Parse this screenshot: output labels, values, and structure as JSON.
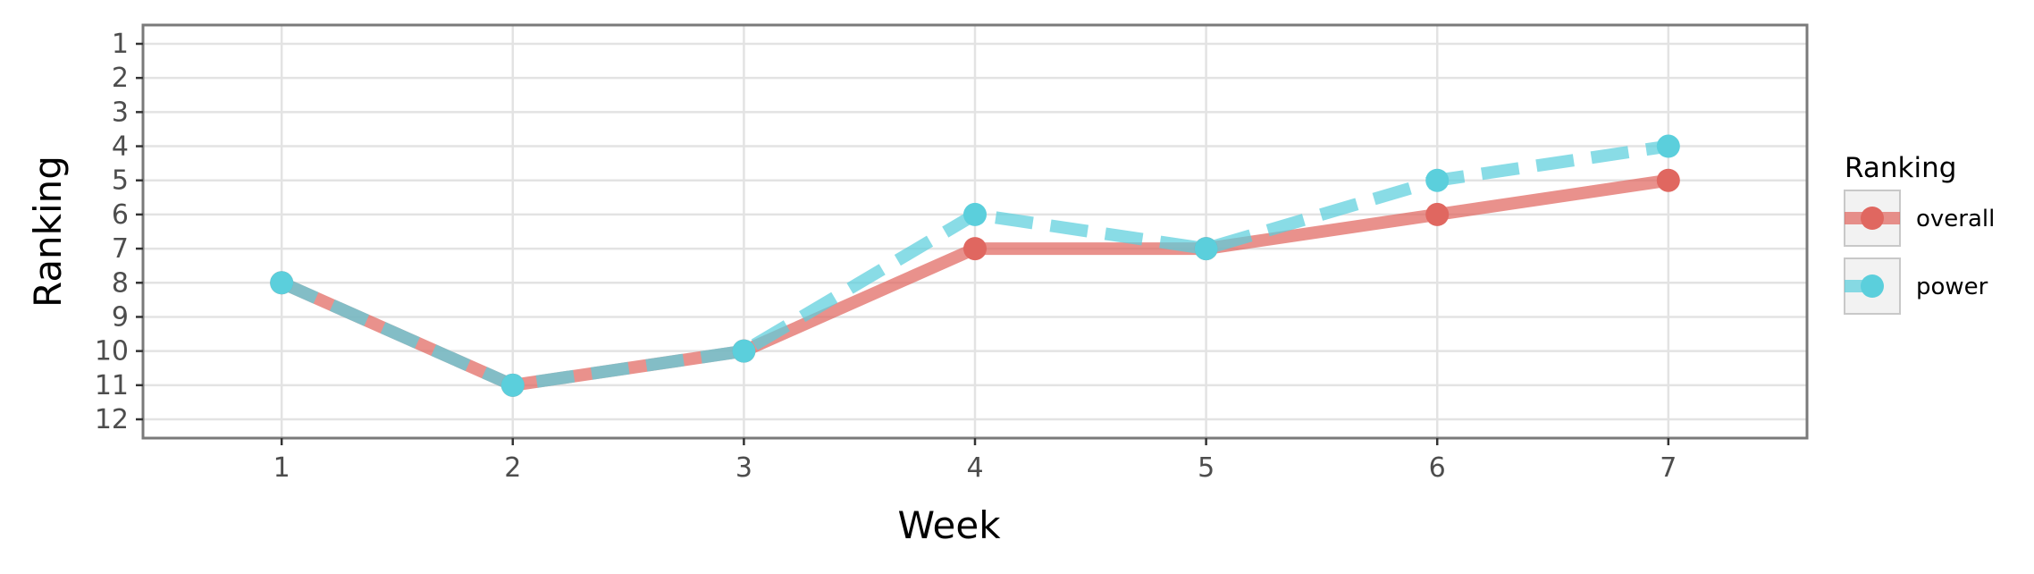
{
  "chart_data": {
    "type": "line",
    "xlabel": "Week",
    "ylabel": "Ranking",
    "x": [
      1,
      2,
      3,
      4,
      5,
      6,
      7
    ],
    "xlim": [
      0.4,
      7.6
    ],
    "ylim": [
      12.55,
      0.45
    ],
    "y_reversed": true,
    "y_ticks": [
      1,
      2,
      3,
      4,
      5,
      6,
      7,
      8,
      9,
      10,
      11,
      12
    ],
    "grid": true,
    "legend": {
      "title": "Ranking",
      "position": "right"
    },
    "series": [
      {
        "name": "overall",
        "values": [
          8,
          11,
          10,
          7,
          7,
          6,
          5
        ],
        "color": "#e06760",
        "line_style": "solid"
      },
      {
        "name": "power",
        "values": [
          8,
          11,
          10,
          6,
          7,
          5,
          4
        ],
        "color": "#5bcfdc",
        "line_style": "dashed"
      }
    ]
  }
}
